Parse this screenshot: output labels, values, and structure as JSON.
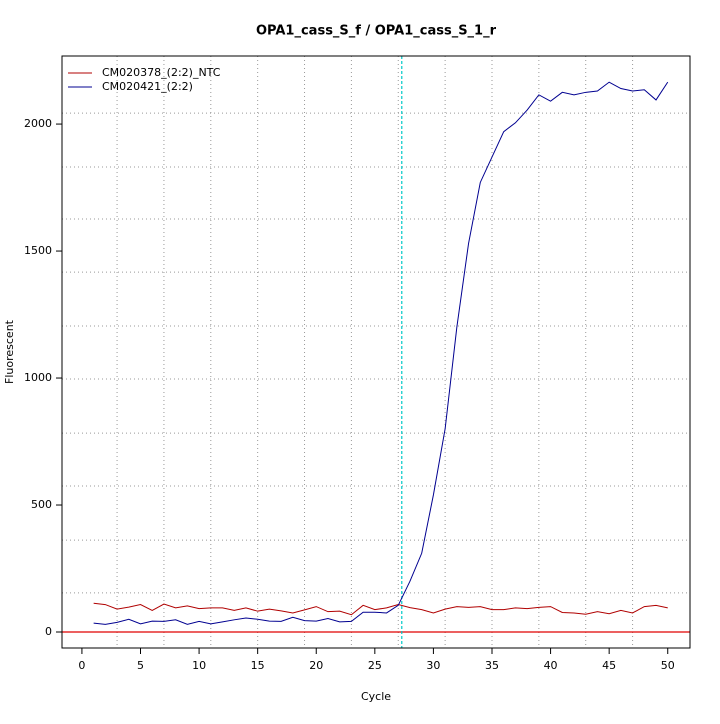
{
  "chart_data": {
    "type": "line",
    "title": "OPA1_cass_S_f / OPA1_cass_S_1_r",
    "x_label": "Cycle",
    "y_label": "Fluorescent",
    "x": [
      1,
      2,
      3,
      4,
      5,
      6,
      7,
      8,
      9,
      10,
      11,
      12,
      13,
      14,
      15,
      16,
      17,
      18,
      19,
      20,
      21,
      22,
      23,
      24,
      25,
      26,
      27,
      28,
      29,
      30,
      31,
      32,
      33,
      34,
      35,
      36,
      37,
      38,
      39,
      40,
      41,
      42,
      43,
      44,
      45,
      46,
      47,
      48,
      49,
      50
    ],
    "series": [
      {
        "name": "CM020378_(2:2)_NTC",
        "color": "#b00000",
        "values": [
          113,
          108,
          90,
          98,
          108,
          85,
          110,
          95,
          103,
          92,
          95,
          95,
          85,
          95,
          82,
          90,
          83,
          75,
          87,
          100,
          80,
          82,
          68,
          105,
          88,
          95,
          108,
          96,
          88,
          75,
          90,
          100,
          97,
          100,
          88,
          88,
          95,
          92,
          97,
          100,
          77,
          75,
          70,
          80,
          72,
          85,
          75,
          100,
          105,
          95
        ]
      },
      {
        "name": "CM020421_(2:2)",
        "color": "#000090",
        "values": [
          35,
          30,
          38,
          50,
          32,
          43,
          42,
          48,
          30,
          42,
          32,
          40,
          48,
          55,
          50,
          43,
          42,
          58,
          45,
          43,
          53,
          40,
          42,
          78,
          78,
          75,
          105,
          200,
          310,
          540,
          800,
          1200,
          1530,
          1770,
          1870,
          1970,
          2005,
          2055,
          2115,
          2090,
          2125,
          2115,
          2125,
          2130,
          2165,
          2140,
          2130,
          2135,
          2095,
          2165
        ]
      }
    ],
    "xlim": [
      -1.7,
      51.9
    ],
    "ylim": [
      -63,
      2268
    ],
    "xticks": [
      0,
      5,
      10,
      15,
      20,
      25,
      30,
      35,
      40,
      45,
      50
    ],
    "yticks": [
      0,
      500,
      1000,
      1500,
      2000
    ],
    "xgrid": [
      3,
      7,
      11,
      15,
      19,
      23,
      27,
      31,
      35,
      39,
      43,
      47
    ],
    "ygrid": [
      154,
      362,
      575,
      783,
      996,
      1205,
      1417,
      1626,
      1831,
      2043
    ],
    "threshold_y": 0,
    "threshold_y_color": "#e00000",
    "threshold_x": 27.3,
    "threshold_x_color": "#00c8c8",
    "legend": "top-left"
  }
}
